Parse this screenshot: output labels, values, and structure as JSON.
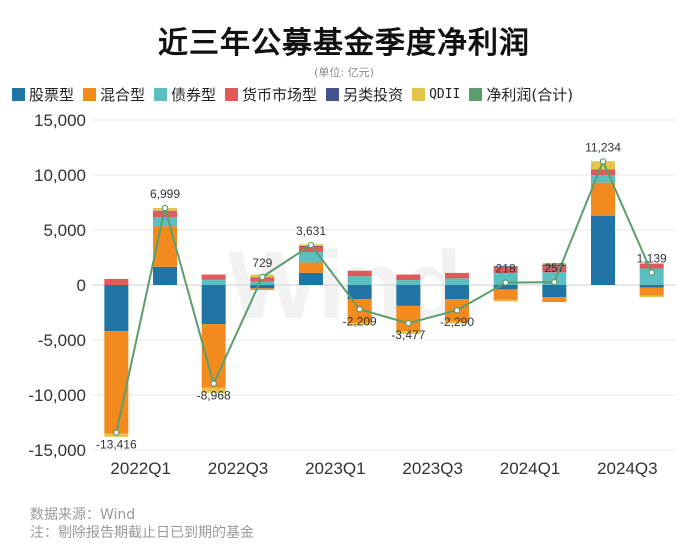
{
  "title": "近三年公募基金季度净利润",
  "unit": "(单位: 亿元)",
  "watermark": "Wind",
  "source_lines": [
    "数据来源：Wind",
    "注：剔除报告期截止日已到期的基金"
  ],
  "chart_data": {
    "type": "bar",
    "stacked": true,
    "title": "近三年公募基金季度净利润",
    "xlabel": "",
    "ylabel": "",
    "ylim": [
      -15000,
      15000
    ],
    "yticks": [
      15000,
      10000,
      5000,
      0,
      -5000,
      -10000,
      -15000
    ],
    "ytick_labels": [
      "15,000",
      "10,000",
      "5,000",
      "0",
      "-5,000",
      "-10,000",
      "-15,000"
    ],
    "categories": [
      "2022Q1",
      "2022Q2",
      "2022Q3",
      "2022Q4",
      "2023Q1",
      "2023Q2",
      "2023Q3",
      "2023Q4",
      "2024Q1",
      "2024Q2",
      "2024Q3",
      "2024Q4"
    ],
    "xtick_labels": [
      "2022Q1",
      "",
      "2022Q3",
      "",
      "2023Q1",
      "",
      "2023Q3",
      "",
      "2024Q1",
      "",
      "2024Q3",
      ""
    ],
    "legend_position": "top",
    "series": [
      {
        "name": "股票型",
        "color": "#2075a5",
        "values": [
          -4200,
          1650,
          -3550,
          -300,
          1100,
          -1300,
          -1900,
          -1300,
          -400,
          -1100,
          6300,
          -250
        ]
      },
      {
        "name": "混合型",
        "color": "#f28a1e",
        "values": [
          -9300,
          3700,
          -5800,
          -150,
          950,
          -2150,
          -2300,
          -2050,
          -950,
          -450,
          3000,
          -700
        ]
      },
      {
        "name": "债券型",
        "color": "#5cbfbf",
        "values": [
          0,
          800,
          500,
          300,
          950,
          800,
          450,
          600,
          1100,
          1150,
          700,
          1500
        ]
      },
      {
        "name": "货币市场型",
        "color": "#e15a5a",
        "values": [
          550,
          550,
          450,
          350,
          500,
          500,
          500,
          500,
          500,
          550,
          500,
          450
        ]
      },
      {
        "name": "另类投资",
        "color": "#45528e",
        "values": [
          0,
          50,
          0,
          50,
          50,
          0,
          0,
          0,
          100,
          150,
          0,
          0
        ]
      },
      {
        "name": "QDII",
        "color": "#e5c44b",
        "values": [
          -300,
          250,
          -450,
          250,
          150,
          -200,
          -250,
          -150,
          -150,
          150,
          750,
          -150
        ]
      }
    ],
    "line": {
      "name": "净利润(合计)",
      "color": "#5c9e6b",
      "values": [
        -13416,
        6999,
        -8968,
        729,
        3631,
        -2209,
        -3477,
        -2290,
        218,
        257,
        11234,
        1139
      ],
      "labels": [
        "-13,416",
        "6,999",
        "-8,968",
        "729",
        "3,631",
        "-2,209",
        "-3,477",
        "-2,290",
        "218",
        "257",
        "11,234",
        "1,139"
      ]
    }
  }
}
